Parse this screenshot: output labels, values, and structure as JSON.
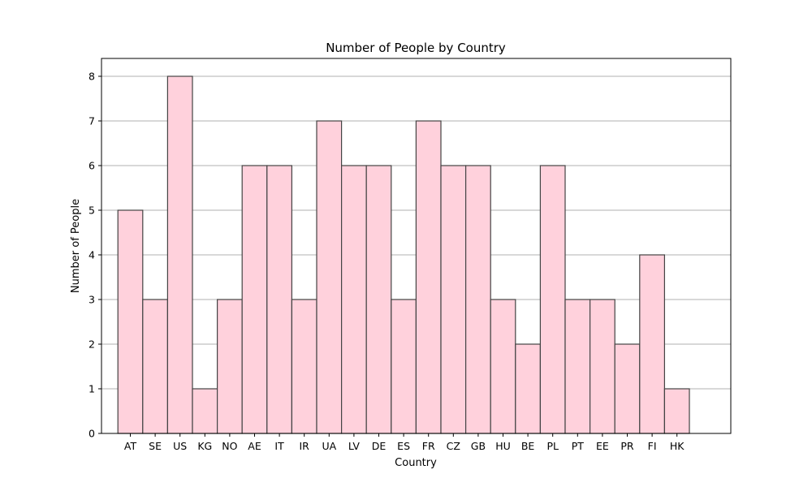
{
  "chart_data": {
    "type": "bar",
    "title": "Number of People by Country",
    "xlabel": "Country",
    "ylabel": "Number of People",
    "categories": [
      "AT",
      "SE",
      "US",
      "KG",
      "NO",
      "AE",
      "IT",
      "IR",
      "UA",
      "LV",
      "DE",
      "ES",
      "FR",
      "CZ",
      "GB",
      "HU",
      "BE",
      "PL",
      "PT",
      "EE",
      "PR",
      "FI",
      "HK"
    ],
    "values": [
      5,
      3,
      8,
      1,
      3,
      6,
      6,
      3,
      7,
      6,
      6,
      3,
      7,
      6,
      6,
      3,
      2,
      6,
      3,
      3,
      2,
      4,
      1
    ],
    "ylim": [
      0,
      8.4
    ],
    "yticks": [
      0,
      1,
      2,
      3,
      4,
      5,
      6,
      7,
      8
    ],
    "grid": "horizontal",
    "legend": "none",
    "colors": {
      "bar_fill": "#ffd1dc",
      "bar_edge": "#444444",
      "grid": "#b0b0b0"
    }
  }
}
